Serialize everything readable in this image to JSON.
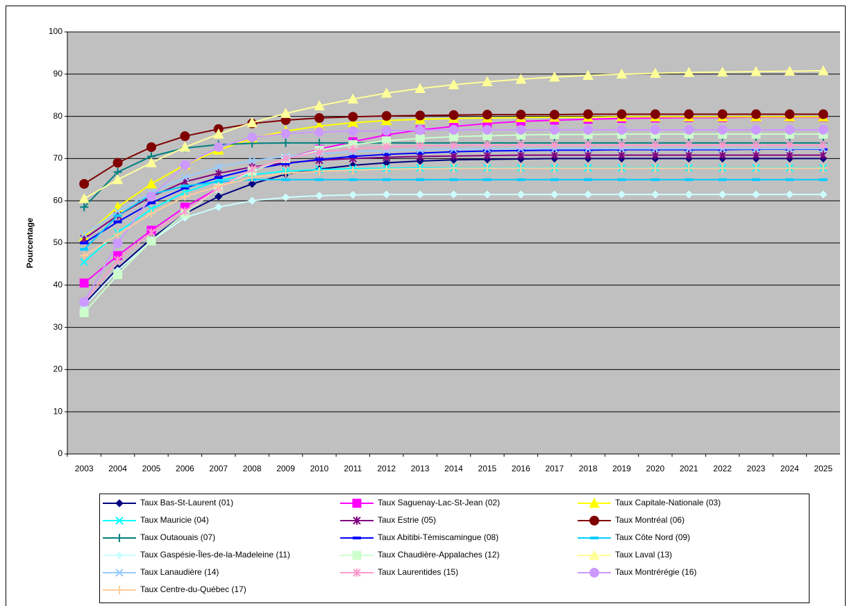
{
  "chart_data": {
    "type": "line",
    "y_label": "Pourcentage",
    "categories": [
      "2003",
      "2004",
      "2005",
      "2006",
      "2007",
      "2008",
      "2009",
      "2010",
      "2011",
      "2012",
      "2013",
      "2014",
      "2015",
      "2016",
      "2017",
      "2018",
      "2019",
      "2020",
      "2021",
      "2022",
      "2023",
      "2024",
      "2025"
    ],
    "ylim": [
      0,
      100
    ],
    "yticks": [
      0,
      10,
      20,
      30,
      40,
      50,
      60,
      70,
      80,
      90,
      100
    ],
    "grid": true,
    "legend": "bottom",
    "series": [
      {
        "name": "Taux Bas-St-Laurent (01)",
        "color": "#000080",
        "marker": "diamond",
        "values": [
          35.5,
          44,
          51,
          57,
          61,
          64,
          66.3,
          67.5,
          68.4,
          69,
          69.4,
          69.7,
          69.8,
          69.9,
          70,
          70,
          70,
          70,
          70,
          70,
          70,
          70,
          70
        ]
      },
      {
        "name": "Taux Saguenay-Lac-St-Jean (02)",
        "color": "#ff00ff",
        "marker": "square",
        "values": [
          40.5,
          47,
          53,
          58.5,
          63,
          67,
          70,
          72.2,
          74,
          75.6,
          76.8,
          77.6,
          78.3,
          78.8,
          79.1,
          79.3,
          79.5,
          79.6,
          79.7,
          79.7,
          79.8,
          79.8,
          79.8
        ]
      },
      {
        "name": "Taux Capitale-Nationale (03)",
        "color": "#ffff00",
        "marker": "triangle",
        "values": [
          51.5,
          58.5,
          64,
          68.5,
          72,
          74.8,
          76.5,
          77.7,
          78.5,
          79,
          79.3,
          79.5,
          79.6,
          79.7,
          79.8,
          79.8,
          79.9,
          79.9,
          79.9,
          79.9,
          79.9,
          79.9,
          79.9
        ]
      },
      {
        "name": "Taux Mauricie (04)",
        "color": "#00ffff",
        "marker": "x",
        "values": [
          45.5,
          52.5,
          58,
          62,
          64.8,
          66.2,
          67,
          67.4,
          67.6,
          67.7,
          67.8,
          67.8,
          67.8,
          67.8,
          67.8,
          67.8,
          67.8,
          67.8,
          67.8,
          67.8,
          67.8,
          67.8,
          67.8
        ]
      },
      {
        "name": "Taux Estrie (05)",
        "color": "#800080",
        "marker": "star",
        "values": [
          51,
          56.5,
          61,
          64.5,
          66.5,
          68,
          69,
          69.6,
          70,
          70.3,
          70.5,
          70.6,
          70.7,
          70.8,
          70.8,
          70.8,
          70.8,
          70.8,
          70.8,
          70.8,
          70.8,
          70.8,
          70.8
        ]
      },
      {
        "name": "Taux Montréal (06)",
        "color": "#800000",
        "marker": "circle",
        "values": [
          64,
          69,
          72.7,
          75.3,
          77,
          78.3,
          79.1,
          79.6,
          79.9,
          80.1,
          80.2,
          80.3,
          80.4,
          80.4,
          80.4,
          80.5,
          80.5,
          80.5,
          80.5,
          80.5,
          80.5,
          80.5,
          80.5
        ]
      },
      {
        "name": "Taux Outaouais (07)",
        "color": "#008080",
        "marker": "plus",
        "values": [
          58.5,
          66.8,
          70.5,
          72.5,
          73.3,
          73.6,
          73.7,
          73.7,
          73.7,
          73.7,
          73.7,
          73.7,
          73.7,
          73.7,
          73.7,
          73.7,
          73.7,
          73.7,
          73.7,
          73.7,
          73.7,
          73.7,
          73.7
        ]
      },
      {
        "name": "Taux Abitibi-Témiscamingue (08)",
        "color": "#0000ff",
        "marker": "dash",
        "values": [
          50,
          55,
          59.5,
          63,
          65.5,
          67.5,
          68.8,
          69.8,
          70.5,
          71,
          71.3,
          71.6,
          71.8,
          71.9,
          72,
          72,
          72.1,
          72.1,
          72.1,
          72.1,
          72.2,
          72.2,
          72.2
        ]
      },
      {
        "name": "Taux Côte Nord (09)",
        "color": "#00ccff",
        "marker": "dash",
        "values": [
          48.5,
          56.5,
          61.5,
          63.5,
          64.5,
          65,
          65,
          65,
          65,
          65,
          65,
          65,
          65,
          65,
          65,
          65,
          65,
          65,
          65,
          65,
          65,
          65,
          65
        ]
      },
      {
        "name": "Taux Gaspésie-Îles-de-la-Madeleine (11)",
        "color": "#ccffff",
        "marker": "diamond",
        "values": [
          35,
          43.5,
          50.5,
          56,
          58.5,
          60,
          60.8,
          61.2,
          61.4,
          61.5,
          61.5,
          61.5,
          61.5,
          61.5,
          61.5,
          61.5,
          61.5,
          61.5,
          61.5,
          61.5,
          61.5,
          61.5,
          61.5
        ]
      },
      {
        "name": "Taux Chaudière-Appalaches (12)",
        "color": "#ccffcc",
        "marker": "square",
        "values": [
          33.5,
          42.5,
          50.5,
          57,
          63,
          67,
          70,
          72,
          73.3,
          74.2,
          74.8,
          75.2,
          75.4,
          75.6,
          75.7,
          75.7,
          75.8,
          75.8,
          75.8,
          75.8,
          75.8,
          75.8,
          75.8
        ]
      },
      {
        "name": "Taux Laval (13)",
        "color": "#ffff99",
        "marker": "triangle",
        "values": [
          60.5,
          65,
          69,
          72.7,
          75.8,
          78.5,
          80.7,
          82.5,
          84.1,
          85.5,
          86.6,
          87.5,
          88.2,
          88.8,
          89.3,
          89.7,
          90,
          90.2,
          90.4,
          90.5,
          90.6,
          90.7,
          90.8
        ]
      },
      {
        "name": "Taux Lanaudière (14)",
        "color": "#99ccff",
        "marker": "x",
        "values": [
          52,
          57.5,
          62,
          65.5,
          68,
          69.5,
          70.5,
          71.2,
          71.6,
          71.9,
          72.1,
          72.2,
          72.3,
          72.3,
          72.3,
          72.3,
          72.3,
          72.3,
          72.3,
          72.3,
          72.3,
          72.3,
          72.3
        ]
      },
      {
        "name": "Taux Laurentides (15)",
        "color": "#ff99cc",
        "marker": "star",
        "values": [
          36,
          46,
          52.5,
          57.5,
          63,
          67.5,
          70,
          71.5,
          72.3,
          72.8,
          73,
          73.1,
          73.2,
          73.2,
          73.2,
          73.2,
          73.2,
          73.2,
          73.2,
          73.2,
          73.2,
          73.2,
          73.2
        ]
      },
      {
        "name": "Taux Montrérégie (16)",
        "color": "#cc99ff",
        "marker": "circle",
        "values": [
          36,
          50,
          61,
          68.5,
          72.7,
          75,
          75.9,
          76.3,
          76.5,
          76.6,
          76.7,
          76.8,
          76.8,
          76.8,
          76.8,
          76.8,
          76.8,
          76.8,
          76.8,
          76.8,
          76.8,
          76.8,
          76.8
        ]
      },
      {
        "name": "Taux Centre-du-Québec (17)",
        "color": "#ffcc99",
        "marker": "plus",
        "values": [
          47,
          52,
          57,
          61,
          63.5,
          65.5,
          66.5,
          67,
          67.3,
          67.5,
          67.6,
          67.7,
          67.7,
          67.7,
          67.7,
          67.7,
          67.7,
          67.7,
          67.7,
          67.7,
          67.7,
          67.7,
          67.7
        ]
      }
    ]
  }
}
